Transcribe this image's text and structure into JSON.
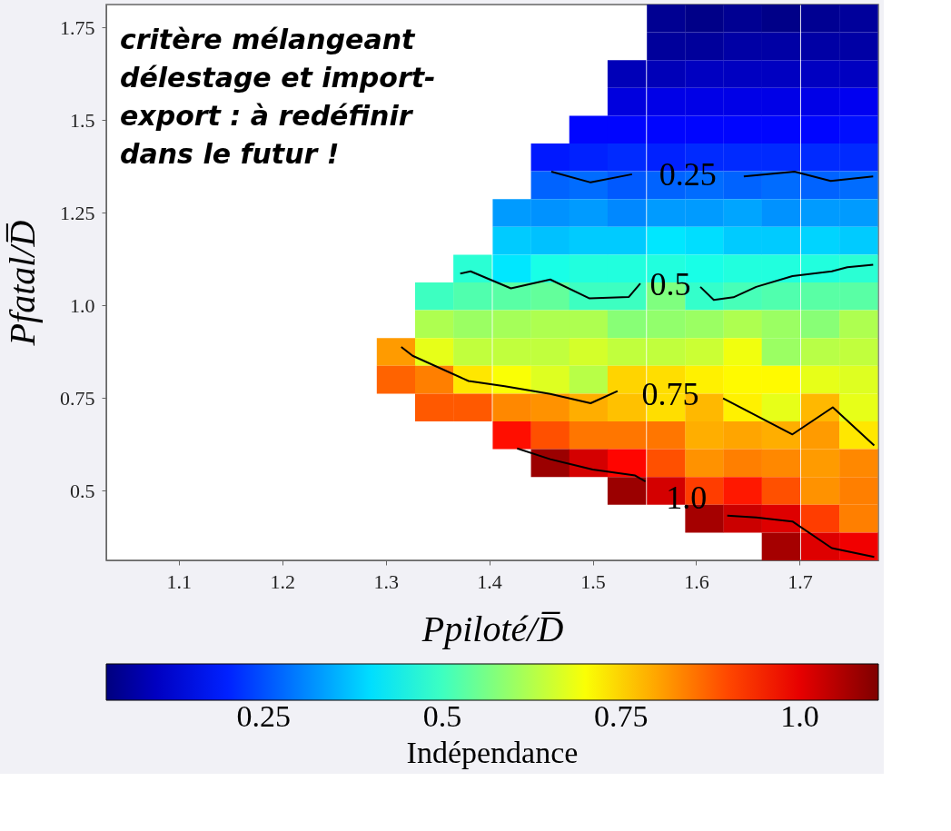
{
  "chart_data": {
    "type": "heatmap",
    "xlabel": "Ppiloté/D̅",
    "ylabel": "Pfatal/D̅",
    "clabel": "Indépendance",
    "x": [
      1.31,
      1.347,
      1.384,
      1.422,
      1.459,
      1.496,
      1.533,
      1.571,
      1.608,
      1.645,
      1.682,
      1.72,
      1.757
    ],
    "xlim": [
      1.03,
      1.776
    ],
    "xticks": [
      1.1,
      1.2,
      1.3,
      1.4,
      1.5,
      1.6,
      1.7
    ],
    "ylim": [
      0.312,
      1.812
    ],
    "yticks": [
      0.5,
      0.75,
      {
        "value": 1.0,
        "label": "1.0"
      },
      1.25,
      1.5,
      1.75
    ],
    "clim": [
      0.03,
      1.11
    ],
    "cticks": [
      0.25,
      0.5,
      0.75,
      {
        "value": 1.0,
        "label": "1.0"
      }
    ],
    "grid": false,
    "cells": [
      [
        null,
        null,
        null,
        null,
        null,
        null,
        null,
        0.05,
        0.04,
        0.05,
        0.04,
        0.05,
        0.06
      ],
      [
        null,
        null,
        null,
        null,
        null,
        null,
        null,
        0.06,
        0.06,
        0.07,
        0.07,
        0.07,
        0.07
      ],
      [
        null,
        null,
        null,
        null,
        null,
        null,
        0.09,
        0.09,
        0.1,
        0.1,
        0.1,
        0.1,
        0.1
      ],
      [
        null,
        null,
        null,
        null,
        null,
        null,
        0.13,
        0.14,
        0.14,
        0.14,
        0.14,
        0.14,
        0.15
      ],
      [
        null,
        null,
        null,
        null,
        null,
        0.17,
        0.17,
        0.17,
        0.17,
        0.17,
        0.17,
        0.17,
        0.18
      ],
      [
        null,
        null,
        null,
        null,
        0.19,
        0.2,
        0.21,
        0.2,
        0.21,
        0.21,
        0.21,
        0.21,
        0.21
      ],
      [
        null,
        null,
        null,
        null,
        0.27,
        0.28,
        0.26,
        0.27,
        0.28,
        0.27,
        0.28,
        0.27,
        0.28
      ],
      [
        null,
        null,
        null,
        0.33,
        0.32,
        0.33,
        0.31,
        0.33,
        0.33,
        0.34,
        0.32,
        0.33,
        0.33
      ],
      [
        null,
        null,
        null,
        0.38,
        0.37,
        0.38,
        0.38,
        0.41,
        0.4,
        0.38,
        0.38,
        0.39,
        0.38
      ],
      [
        null,
        null,
        0.48,
        0.41,
        0.46,
        0.47,
        0.47,
        0.47,
        0.46,
        0.47,
        0.47,
        0.47,
        0.48
      ],
      [
        null,
        0.5,
        0.52,
        0.53,
        0.54,
        0.5,
        0.5,
        0.57,
        0.49,
        0.51,
        0.52,
        0.53,
        0.53
      ],
      [
        null,
        0.62,
        0.6,
        0.61,
        0.62,
        0.62,
        0.58,
        0.59,
        0.6,
        0.62,
        0.6,
        0.58,
        0.62
      ],
      [
        0.81,
        0.68,
        0.64,
        0.64,
        0.64,
        0.66,
        0.64,
        0.64,
        0.65,
        0.69,
        0.6,
        0.63,
        0.64
      ],
      [
        0.87,
        0.84,
        0.73,
        0.7,
        0.67,
        0.63,
        0.75,
        0.74,
        0.72,
        0.71,
        0.71,
        0.68,
        0.67
      ],
      [
        null,
        0.88,
        0.88,
        0.83,
        0.82,
        0.79,
        0.77,
        0.74,
        0.78,
        0.72,
        0.68,
        0.78,
        0.68
      ],
      [
        null,
        null,
        null,
        0.96,
        0.89,
        0.85,
        0.85,
        0.85,
        0.79,
        0.8,
        0.79,
        0.81,
        0.73
      ],
      [
        null,
        null,
        null,
        null,
        1.08,
        1.02,
        0.97,
        0.89,
        0.82,
        0.84,
        0.83,
        0.81,
        0.83
      ],
      [
        null,
        null,
        null,
        null,
        null,
        null,
        1.08,
        1.02,
        0.91,
        0.95,
        0.89,
        0.82,
        0.84
      ],
      [
        null,
        null,
        null,
        null,
        null,
        null,
        null,
        null,
        1.07,
        1.03,
        1.01,
        0.91,
        0.84
      ],
      [
        null,
        null,
        null,
        null,
        null,
        null,
        null,
        null,
        null,
        null,
        1.07,
        1.01,
        0.99
      ]
    ],
    "series": [
      {
        "type": "line",
        "color": "#000000",
        "x": [
          1.46,
          1.498,
          1.538,
          null,
          1.646,
          1.695,
          1.73,
          1.771
        ],
        "values": [
          1.361,
          1.332,
          1.354,
          null,
          1.348,
          1.361,
          1.336,
          1.348
        ]
      },
      {
        "type": "line",
        "color": "#000000",
        "x": [
          1.372,
          1.382,
          1.421,
          1.459,
          1.497,
          1.535,
          1.546,
          null,
          1.604,
          1.617,
          1.636,
          1.658,
          1.693,
          1.731,
          1.746,
          1.771
        ],
        "values": [
          1.086,
          1.092,
          1.046,
          1.07,
          1.019,
          1.023,
          1.059,
          null,
          1.05,
          1.015,
          1.022,
          1.05,
          1.079,
          1.092,
          1.103,
          1.11
        ]
      },
      {
        "type": "line",
        "color": "#000000",
        "x": [
          1.315,
          1.326,
          1.38,
          1.415,
          1.459,
          1.498,
          1.524,
          null,
          1.626,
          1.693,
          1.732,
          1.772
        ],
        "values": [
          0.888,
          0.864,
          0.796,
          0.782,
          0.761,
          0.736,
          0.769,
          null,
          0.749,
          0.652,
          0.725,
          0.622
        ]
      },
      {
        "type": "line",
        "color": "#000000",
        "x": [
          1.427,
          1.459,
          1.5,
          1.541,
          1.551,
          null,
          1.63,
          1.658,
          1.693,
          1.731,
          1.772
        ],
        "values": [
          0.614,
          0.585,
          0.557,
          0.541,
          0.525,
          null,
          0.433,
          0.428,
          0.417,
          0.345,
          0.321
        ]
      }
    ],
    "annotations": [
      "critère mélangeant\ndélestage et import-\nexport : à redéfinir\ndans le futur !",
      "0.25",
      "0.5",
      "0.75",
      "1.0"
    ]
  }
}
